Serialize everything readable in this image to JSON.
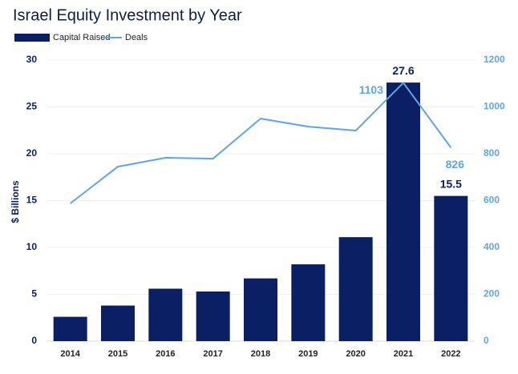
{
  "chart_data": {
    "type": "bar",
    "title": "Israel Equity Investment by Year",
    "y_label": "$ Billions",
    "categories": [
      "2014",
      "2015",
      "2016",
      "2017",
      "2018",
      "2019",
      "2020",
      "2021",
      "2022"
    ],
    "series": [
      {
        "name": "Capital Raised",
        "type": "bar",
        "color": "#0b1f65",
        "axis": "y",
        "values": [
          2.6,
          3.8,
          5.6,
          5.3,
          6.7,
          8.2,
          11.1,
          27.6,
          15.5
        ],
        "value_labels": [
          null,
          null,
          null,
          null,
          null,
          null,
          null,
          "27.6",
          "15.5"
        ]
      },
      {
        "name": "Deals",
        "type": "line",
        "color": "#5ea6e4",
        "axis": "y2",
        "values": [
          588,
          745,
          783,
          779,
          950,
          916,
          899,
          1103,
          826
        ],
        "value_labels": [
          null,
          null,
          null,
          null,
          null,
          null,
          null,
          "1103",
          "826"
        ]
      }
    ],
    "ylim": [
      0,
      30
    ],
    "yticks": [
      0,
      5,
      10,
      15,
      20,
      25,
      30
    ],
    "y2lim": [
      0,
      1200
    ],
    "y2ticks": [
      0,
      200,
      400,
      600,
      800,
      1000,
      1200
    ],
    "grid": true,
    "legend": "top-left"
  }
}
